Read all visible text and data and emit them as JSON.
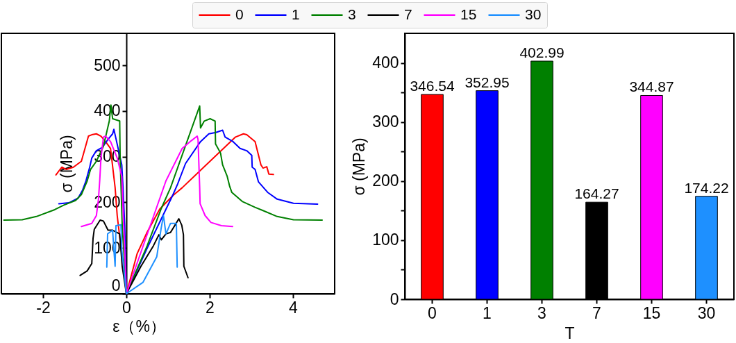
{
  "chart_data": [
    {
      "type": "line",
      "xlabel": "ε（%）",
      "ylabel": "σ (MPa)",
      "xlim": [
        -3,
        5
      ],
      "ylim": [
        0,
        570
      ],
      "xticks": [
        -2,
        0,
        2,
        4
      ],
      "yticks": [
        0,
        100,
        200,
        300,
        400,
        500
      ],
      "legend": "top",
      "series": [
        {
          "name": "0",
          "color": "#ff0000",
          "x": [
            -1.69,
            -1.55,
            -1.44,
            -1.27,
            -1.08,
            -0.91,
            -0.83,
            -0.72,
            -0.61,
            -0.5,
            -0.38,
            -0.27,
            -0.22,
            0,
            0.26,
            0.5,
            0.8,
            1.12,
            1.34,
            2.62,
            2.81,
            2.89,
            3.09,
            3.23,
            3.28,
            3.37,
            3.42,
            3.53
          ],
          "values": [
            260,
            277,
            272,
            277,
            290,
            345,
            348,
            350,
            345,
            333,
            318,
            232,
            171,
            0,
            88,
            135,
            185,
            215,
            232,
            343,
            350,
            348,
            333,
            282,
            275,
            278,
            262,
            261
          ]
        },
        {
          "name": "1",
          "color": "#0000ff",
          "x": [
            -1.62,
            -1.38,
            -1.16,
            -1.05,
            -0.97,
            -0.88,
            -0.83,
            -0.72,
            -0.58,
            -0.44,
            -0.33,
            -0.3,
            -0.11,
            -0.08,
            -0.04,
            0,
            0.5,
            1.12,
            1.23,
            1.42,
            1.78,
            1.98,
            2.15,
            2.31,
            2.37,
            2.56,
            2.73,
            2.89,
            3.01,
            3.02,
            3.09,
            3.17,
            3.39,
            3.62,
            4.01,
            4.59
          ],
          "values": [
            197,
            199,
            209,
            227,
            247,
            277,
            297,
            313,
            320,
            338,
            350,
            360,
            282,
            232,
            150,
            0,
            100,
            217,
            240,
            285,
            333,
            350,
            353,
            358,
            343,
            333,
            318,
            313,
            303,
            277,
            272,
            245,
            222,
            207,
            198,
            196
          ]
        },
        {
          "name": "3",
          "color": "#008000",
          "x": [
            -2.94,
            -2.5,
            -2.16,
            -1.72,
            -1.5,
            -1.22,
            -1.08,
            -0.94,
            -0.86,
            -0.72,
            -0.55,
            -0.41,
            -0.37,
            -0.33,
            -0.16,
            -0.15,
            -0.1,
            0,
            0.5,
            0.84,
            1.06,
            1.76,
            1.78,
            1.87,
            2.01,
            2.13,
            2.14,
            2.26,
            2.31,
            2.42,
            2.48,
            2.53,
            2.78,
            3.09,
            3.28,
            3.62,
            4.01,
            4.7
          ],
          "values": [
            161,
            162,
            169,
            184,
            194,
            204,
            217,
            247,
            272,
            290,
            323,
            378,
            413,
            383,
            378,
            300,
            150,
            0,
            105,
            187,
            232,
            411,
            363,
            378,
            383,
            378,
            328,
            308,
            282,
            257,
            235,
            222,
            202,
            189,
            182,
            169,
            162,
            161
          ]
        },
        {
          "name": "7",
          "color": "#000000",
          "x": [
            -1.11,
            -0.94,
            -0.83,
            -0.8,
            -0.77,
            -0.63,
            -0.55,
            -0.44,
            -0.33,
            -0.16,
            -0.1,
            0,
            0.35,
            0.65,
            0.78,
            0.84,
            0.95,
            1.06,
            1.26,
            1.33,
            1.37,
            1.38,
            1.48
          ],
          "values": [
            40,
            50,
            66,
            121,
            141,
            161,
            159,
            139,
            139,
            131,
            60,
            0,
            60,
            105,
            129,
            118,
            131,
            134,
            164,
            150,
            129,
            60,
            35
          ]
        },
        {
          "name": "15",
          "color": "#ff00ff",
          "x": [
            -1.08,
            -0.83,
            -0.72,
            -0.67,
            -0.64,
            -0.61,
            -0.55,
            -0.5,
            -0.38,
            -0.22,
            -0.11,
            0,
            0.5,
            0.95,
            1.34,
            1.56,
            1.7,
            1.72,
            1.76,
            1.77,
            1.89,
            2.03,
            2.28,
            2.55
          ],
          "values": [
            147,
            154,
            171,
            207,
            247,
            297,
            343,
            345,
            333,
            297,
            257,
            0,
            130,
            247,
            318,
            335,
            345,
            338,
            232,
            197,
            171,
            156,
            149,
            147
          ]
        },
        {
          "name": "30",
          "color": "#1e90ff",
          "x": [
            -0.47,
            -0.45,
            -0.33,
            -0.3,
            -0.27,
            -0.25,
            -0.13,
            -0.11,
            0,
            0.4,
            0.73,
            0.84,
            0.89,
            0.95,
            1.06,
            1.2,
            1.22
          ],
          "values": [
            58,
            131,
            139,
            96,
            60,
            149,
            151,
            96,
            0,
            25,
            81,
            146,
            171,
            131,
            154,
            154,
            58
          ]
        }
      ]
    },
    {
      "type": "bar",
      "xlabel": "T",
      "ylabel": "σ (MPa)",
      "categories": [
        "0",
        "1",
        "3",
        "7",
        "15",
        "30"
      ],
      "values": [
        346.54,
        352.95,
        402.99,
        164.27,
        344.87,
        174.22
      ],
      "colors": [
        "#ff0000",
        "#0000ff",
        "#008000",
        "#000000",
        "#ff00ff",
        "#1e90ff"
      ],
      "ylim": [
        0,
        450
      ],
      "yticks": [
        0,
        {
          "value": 50,
          "label": null
        },
        100,
        {
          "value": 150,
          "label": null
        },
        200,
        {
          "value": 250,
          "label": null
        },
        300,
        {
          "value": 350,
          "label": null
        },
        400
      ],
      "data_labels": true
    }
  ]
}
